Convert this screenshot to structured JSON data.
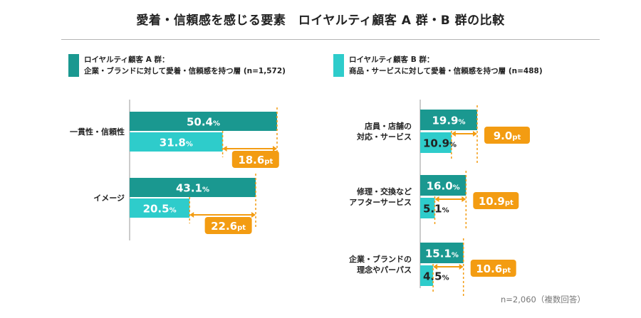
{
  "title": "愛着・信頼感を感じる要素　ロイヤルティ顧客 A 群・B 群の比較",
  "colors": {
    "groupA": "#1a9890",
    "groupB": "#2ecccb",
    "difference": "#f39c12",
    "axis": "#bbbbbb"
  },
  "legend": {
    "a": {
      "line1": "ロイヤルティ顧客 A 群：",
      "line2": "企業・ブランドに対して愛着・信頼感を持つ層 (n=1,572)"
    },
    "b": {
      "line1": "ロイヤルティ顧客 B 群：",
      "line2": "商品・サービスに対して愛着・信頼感を持つ層 (n=488)"
    }
  },
  "footnote": "n=2,060（複数回答）",
  "chart_data": [
    {
      "type": "bar",
      "orientation": "horizontal",
      "categories": [
        [
          "一貫性・信頼性"
        ],
        [
          "イメージ"
        ]
      ],
      "series": [
        {
          "name": "ロイヤルティ顧客 A 群",
          "values": [
            50.4,
            43.1
          ]
        },
        {
          "name": "ロイヤルティ顧客 B 群",
          "values": [
            31.8,
            20.5
          ]
        }
      ],
      "differences": [
        18.6,
        22.6
      ],
      "value_unit": "%",
      "difference_unit": "pt"
    },
    {
      "type": "bar",
      "orientation": "horizontal",
      "categories": [
        [
          "店員・店舗の",
          "対応・サービス"
        ],
        [
          "修理・交換など",
          "アフターサービス"
        ],
        [
          "企業・ブランドの",
          "理念やパーパス"
        ]
      ],
      "series": [
        {
          "name": "ロイヤルティ顧客 A 群",
          "values": [
            19.9,
            16.0,
            15.1
          ]
        },
        {
          "name": "ロイヤルティ顧客 B 群",
          "values": [
            10.9,
            5.1,
            4.5
          ]
        }
      ],
      "differences": [
        9.0,
        10.9,
        10.6
      ],
      "value_unit": "%",
      "difference_unit": "pt"
    }
  ]
}
